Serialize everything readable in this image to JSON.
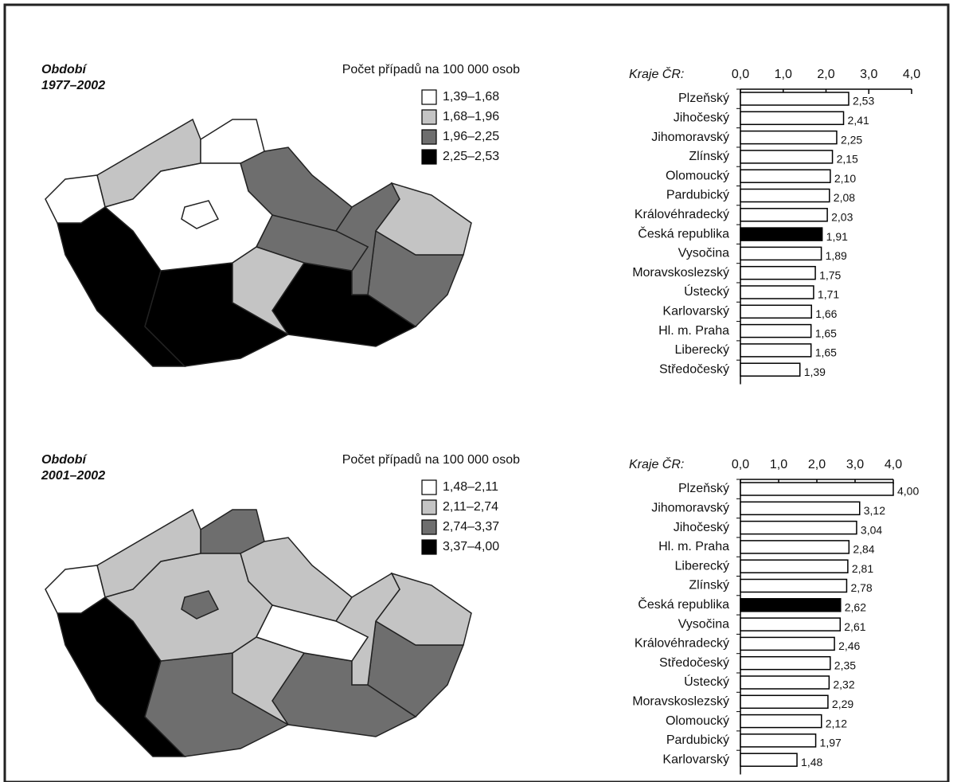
{
  "chart_data": [
    {
      "type": "map",
      "title": "Období",
      "subtitle": "1977–2002",
      "legend_title": "Počet případů na 100 000 osob",
      "bins": [
        1.39,
        1.68,
        1.96,
        2.25,
        2.53
      ],
      "bin_labels": [
        "1,39–1,68",
        "1,68–1,96",
        "1,96–2,25",
        "2,25–2,53"
      ],
      "colors": [
        "#ffffff",
        "#c4c4c4",
        "#6e6e6e",
        "#000000"
      ]
    },
    {
      "type": "barh",
      "axis_label": "Kraje ČR:",
      "categories": [
        "Plzeňský",
        "Jihočeský",
        "Jihomoravský",
        "Zlínský",
        "Olomoucký",
        "Pardubický",
        "Královéhradecký",
        "Česká republika",
        "Vysočina",
        "Moravskoslezský",
        "Ústecký",
        "Karlovarský",
        "Hl. m. Praha",
        "Liberecký",
        "Středočeský"
      ],
      "values": [
        2.53,
        2.41,
        2.25,
        2.15,
        2.1,
        2.08,
        2.03,
        1.91,
        1.89,
        1.75,
        1.71,
        1.66,
        1.65,
        1.65,
        1.39
      ],
      "value_labels": [
        "2,53",
        "2,41",
        "2,25",
        "2,15",
        "2,10",
        "2,08",
        "2,03",
        "1,91",
        "1,89",
        "1,75",
        "1,71",
        "1,66",
        "1,65",
        "1,65",
        "1,39"
      ],
      "colors": [
        "#fff",
        "#fff",
        "#fff",
        "#fff",
        "#fff",
        "#fff",
        "#fff",
        "#000",
        "#fff",
        "#fff",
        "#fff",
        "#fff",
        "#fff",
        "#fff",
        "#fff"
      ],
      "xlim": [
        0,
        4
      ],
      "xticks": [
        {
          "value": 0,
          "label": "0,0"
        },
        {
          "value": 1,
          "label": "1,0"
        },
        {
          "value": 2,
          "label": "2,0"
        },
        {
          "value": 3,
          "label": "3,0"
        },
        {
          "value": 4,
          "label": "4,0"
        }
      ]
    },
    {
      "type": "map",
      "title": "Období",
      "subtitle": "2001–2002",
      "legend_title": "Počet případů na 100 000 osob",
      "bins": [
        1.48,
        2.11,
        2.74,
        3.37,
        4.0
      ],
      "bin_labels": [
        "1,48–2,11",
        "2,11–2,74",
        "2,74–3,37",
        "3,37–4,00"
      ],
      "colors": [
        "#ffffff",
        "#c4c4c4",
        "#6e6e6e",
        "#000000"
      ]
    },
    {
      "type": "barh",
      "axis_label": "Kraje ČR:",
      "categories": [
        "Plzeňský",
        "Jihomoravský",
        "Jihočeský",
        "Hl. m. Praha",
        "Liberecký",
        "Zlínský",
        "Česká republika",
        "Vysočina",
        "Královéhradecký",
        "Středočeský",
        "Ústecký",
        "Moravskoslezský",
        "Olomoucký",
        "Pardubický",
        "Karlovarský"
      ],
      "values": [
        4.0,
        3.12,
        3.04,
        2.84,
        2.81,
        2.78,
        2.62,
        2.61,
        2.46,
        2.35,
        2.32,
        2.29,
        2.12,
        1.97,
        1.48
      ],
      "value_labels": [
        "4,00",
        "3,12",
        "3,04",
        "2,84",
        "2,81",
        "2,78",
        "2,62",
        "2,61",
        "2,46",
        "2,35",
        "2,32",
        "2,29",
        "2,12",
        "1,97",
        "1,48"
      ],
      "colors": [
        "#fff",
        "#fff",
        "#fff",
        "#fff",
        "#fff",
        "#fff",
        "#000",
        "#fff",
        "#fff",
        "#fff",
        "#fff",
        "#fff",
        "#fff",
        "#fff",
        "#fff"
      ],
      "xlim": [
        0,
        4
      ],
      "xticks": [
        {
          "value": 0,
          "label": "0,0"
        },
        {
          "value": 1,
          "label": "1,0"
        },
        {
          "value": 2,
          "label": "2,0"
        },
        {
          "value": 3,
          "label": "3,0"
        },
        {
          "value": 4,
          "label": "4,0"
        }
      ]
    }
  ]
}
